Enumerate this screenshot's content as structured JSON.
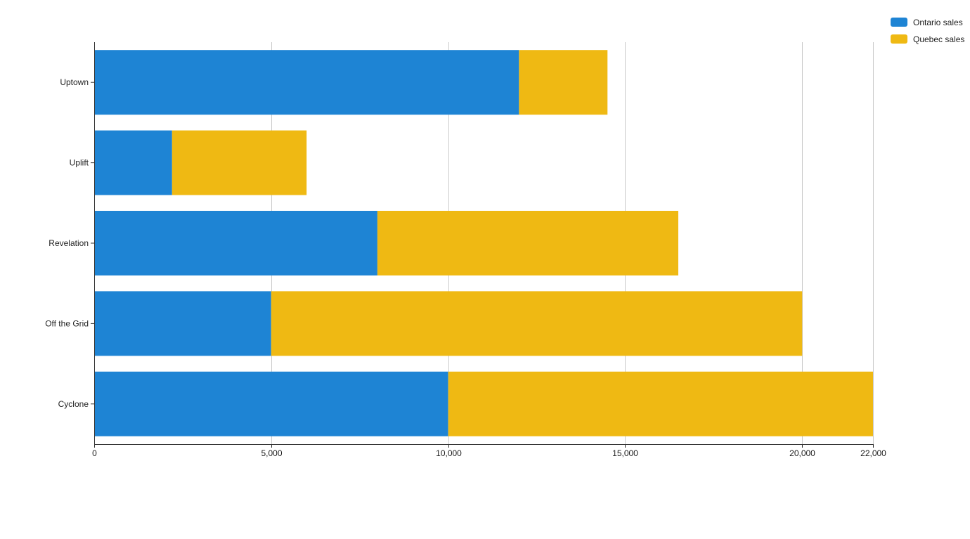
{
  "chart_data": {
    "type": "bar",
    "orientation": "horizontal",
    "stacked": true,
    "title": "",
    "xlabel": "",
    "ylabel": "",
    "categories": [
      "Uptown",
      "Uplift",
      "Revelation",
      "Off the Grid",
      "Cyclone"
    ],
    "series": [
      {
        "name": "Ontario sales",
        "color": "#1e84d4",
        "values": [
          12000,
          2200,
          8000,
          5000,
          10000
        ]
      },
      {
        "name": "Quebec sales",
        "color": "#efb913",
        "values": [
          2500,
          3800,
          8500,
          15000,
          12000
        ]
      }
    ],
    "xlim": [
      0,
      22000
    ],
    "x_ticks": [
      0,
      5000,
      10000,
      15000,
      20000,
      22000
    ],
    "x_tick_labels": [
      "0",
      "5,000",
      "10,000",
      "15,000",
      "20,000",
      "22,000"
    ],
    "grid": true,
    "legend_position": "top-right"
  }
}
